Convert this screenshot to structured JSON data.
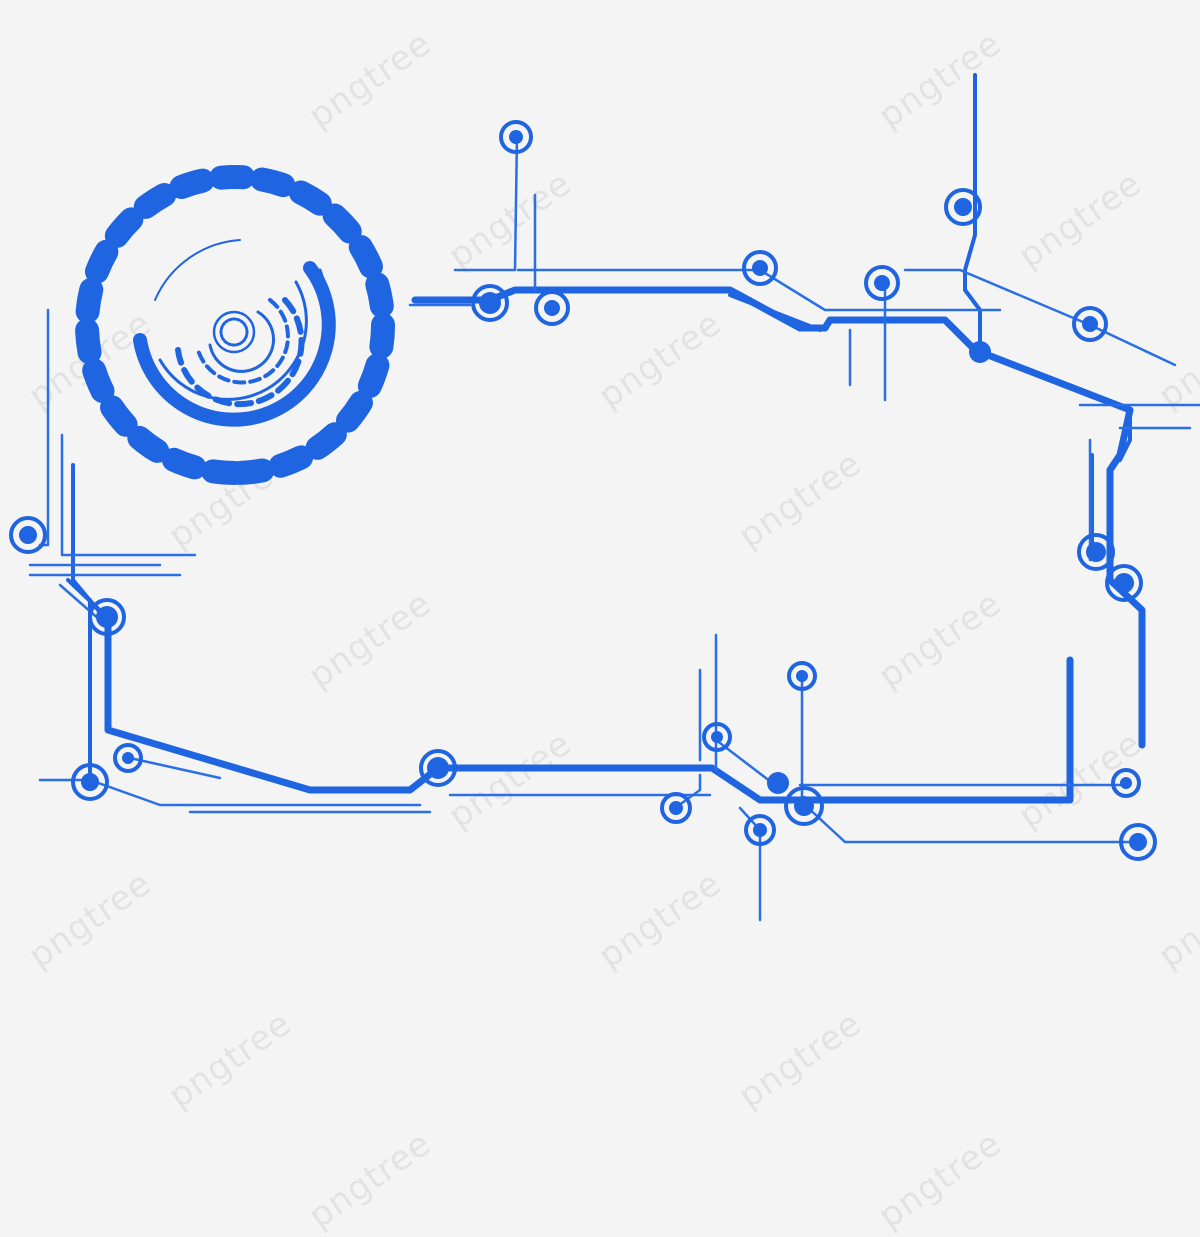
{
  "watermark": {
    "text": "pngtree"
  },
  "colors": {
    "primary": "#1f64e0",
    "thin": "#2a6fe6",
    "background": "#f4f4f4"
  },
  "graphic": {
    "name": "blue circuit board frame with tech dial",
    "icon": "circuit-frame-icon"
  }
}
